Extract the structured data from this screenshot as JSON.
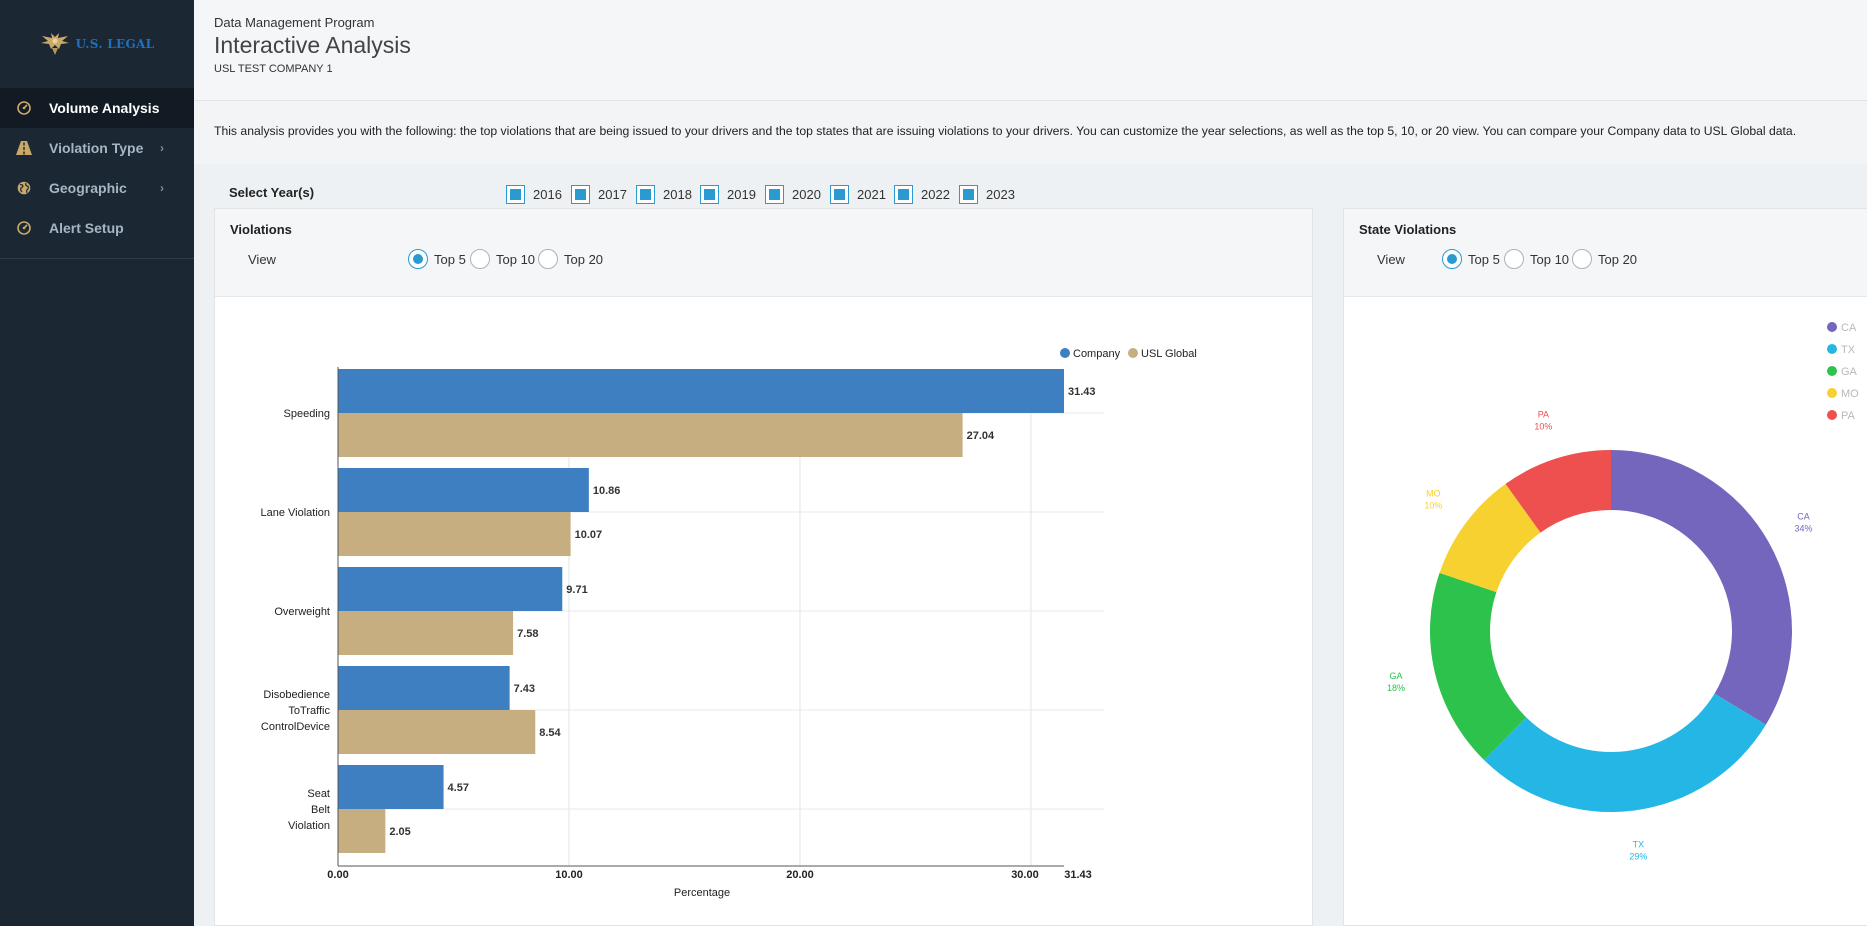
{
  "logo": {
    "text": "U.S. LEGAL"
  },
  "sidebar": {
    "items": [
      {
        "label": "Volume Analysis",
        "icon": "gauge-icon",
        "active": true,
        "has_submenu": false
      },
      {
        "label": "Violation Type",
        "icon": "road-icon",
        "active": false,
        "has_submenu": true
      },
      {
        "label": "Geographic",
        "icon": "globe-icon",
        "active": false,
        "has_submenu": true
      },
      {
        "label": "Alert Setup",
        "icon": "gauge-icon",
        "active": false,
        "has_submenu": false
      }
    ]
  },
  "header": {
    "subtitle": "Data Management Program",
    "title": "Interactive Analysis",
    "company": "USL TEST COMPANY 1"
  },
  "description": "This analysis provides you with the following: the top violations that are being issued to your drivers and the top states that are issuing violations to your drivers. You can customize the year selections, as well as the top 5, 10, or 20 view. You can compare your Company data to USL Global data.",
  "year_filter": {
    "label": "Select Year(s)",
    "years": [
      {
        "label": "2016",
        "checked": true
      },
      {
        "label": "2017",
        "checked": true
      },
      {
        "label": "2018",
        "checked": true
      },
      {
        "label": "2019",
        "checked": true
      },
      {
        "label": "2020",
        "checked": true
      },
      {
        "label": "2021",
        "checked": true
      },
      {
        "label": "2022",
        "checked": true
      },
      {
        "label": "2023",
        "checked": true
      }
    ]
  },
  "violations_panel": {
    "title": "Violations",
    "view_label": "View",
    "options": [
      {
        "label": "Top 5",
        "selected": true
      },
      {
        "label": "Top 10",
        "selected": false
      },
      {
        "label": "Top 20",
        "selected": false
      }
    ]
  },
  "state_panel": {
    "title": "State Violations",
    "view_label": "View",
    "options": [
      {
        "label": "Top 5",
        "selected": true
      },
      {
        "label": "Top 10",
        "selected": false
      },
      {
        "label": "Top 20",
        "selected": false
      }
    ]
  },
  "chart_data": [
    {
      "type": "bar",
      "orientation": "horizontal",
      "categories": [
        "Speeding",
        "Lane Violation",
        "Overweight",
        "Disobedience ToTraffic ControlDevice",
        "Seat Belt Violation"
      ],
      "series": [
        {
          "name": "Company",
          "color": "#3e7fc1",
          "values": [
            31.43,
            10.86,
            9.71,
            7.43,
            4.57
          ]
        },
        {
          "name": "USL Global",
          "color": "#c6ae80",
          "values": [
            27.04,
            10.07,
            7.58,
            8.54,
            2.05
          ]
        }
      ],
      "xlabel": "Percentage",
      "xticks": [
        "0.00",
        "10.00",
        "20.00",
        "30.00",
        "31.43"
      ],
      "xlim": [
        0,
        31.43
      ],
      "legend": "top-right",
      "grid": true
    },
    {
      "type": "pie",
      "donut": true,
      "slices": [
        {
          "label": "CA",
          "percent_label": "34%",
          "value": 34,
          "color": "#7566bd"
        },
        {
          "label": "TX",
          "percent_label": "29%",
          "value": 29,
          "color": "#24b7e6"
        },
        {
          "label": "GA",
          "percent_label": "18%",
          "value": 18,
          "color": "#2cc24b"
        },
        {
          "label": "MO",
          "percent_label": "10%",
          "value": 10,
          "color": "#f7d130"
        },
        {
          "label": "PA",
          "percent_label": "10%",
          "value": 10,
          "color": "#ee5050"
        }
      ],
      "legend": "top-right"
    }
  ]
}
